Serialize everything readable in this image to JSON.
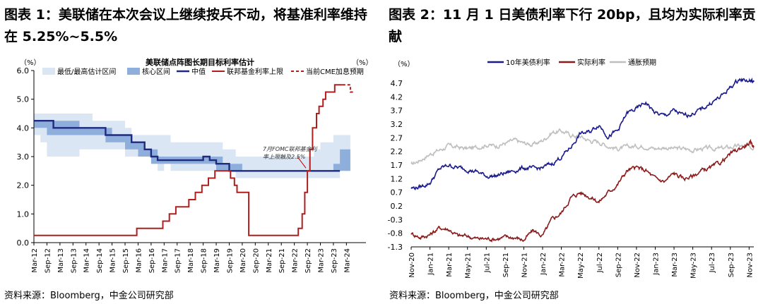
{
  "chart_data": [
    {
      "type": "line",
      "figure_title": "图表 1：美联储在本次会议上继续按兵不动，将基准利率维持在 5.25%~5.5%",
      "title": "美联储点阵图长期目标利率估计",
      "ylabel_left": "（%）",
      "ylabel_right": "（%）",
      "ylim": [
        0,
        6
      ],
      "yticks": [
        "0.0",
        "1.0",
        "2.0",
        "3.0",
        "4.0",
        "5.0",
        "6.0"
      ],
      "xticks": [
        "Mar-12",
        "Sep-12",
        "Mar-13",
        "Sep-13",
        "Mar-14",
        "Sep-14",
        "Mar-15",
        "Sep-15",
        "Mar-16",
        "Sep-16",
        "Mar-17",
        "Sep-17",
        "Mar-18",
        "Sep-18",
        "Mar-19",
        "Sep-19",
        "Mar-20",
        "Sep-20",
        "Mar-21",
        "Sep-21",
        "Mar-22",
        "Sep-22",
        "Mar-23",
        "Sep-23",
        "Mar-24"
      ],
      "legend": [
        "最低/最高估计区间",
        "核心区间",
        "中值",
        "联邦基金利率上限",
        "当前CME加息预期"
      ],
      "annotation": "7月FOMC联邦基金利率上限触及2.5%",
      "colors": {
        "range": "#dbe6f4",
        "core": "#8eaedb",
        "median": "#1f2a80",
        "fed": "#b01e1e",
        "cme": "#b01e1e"
      },
      "range_band": {
        "t": [
          2012.0,
          2012.25,
          2012.5,
          2012.75,
          2013.0,
          2013.25,
          2013.5,
          2013.75,
          2014.0,
          2014.25,
          2014.5,
          2014.75,
          2015.0,
          2015.25,
          2015.5,
          2015.75,
          2016.0,
          2016.25,
          2016.5,
          2016.75,
          2017.0,
          2017.25,
          2017.5,
          2017.75,
          2018.0,
          2018.25,
          2018.5,
          2018.75,
          2019.0,
          2019.25,
          2019.5,
          2019.75,
          2020.0,
          2020.25,
          2020.5,
          2020.75,
          2021.0,
          2021.25,
          2021.5,
          2021.75,
          2022.0,
          2022.25,
          2022.5,
          2022.75,
          2023.0,
          2023.25,
          2023.5,
          2023.75
        ],
        "low": [
          3.75,
          3.5,
          3.0,
          3.0,
          3.0,
          3.0,
          3.0,
          3.25,
          3.25,
          3.25,
          3.25,
          3.25,
          3.25,
          3.25,
          3.0,
          3.0,
          3.0,
          3.0,
          2.75,
          2.5,
          2.75,
          2.5,
          2.5,
          2.5,
          2.5,
          2.5,
          2.5,
          2.5,
          2.5,
          2.5,
          2.5,
          2.25,
          2.25,
          2.25,
          2.25,
          2.25,
          2.25,
          2.25,
          2.25,
          2.25,
          2.25,
          2.25,
          2.25,
          2.25,
          2.25,
          2.25,
          2.25,
          2.5
        ],
        "high": [
          4.5,
          4.5,
          4.5,
          4.5,
          4.5,
          4.5,
          4.5,
          4.5,
          4.5,
          4.25,
          4.25,
          4.25,
          4.25,
          4.25,
          4.0,
          3.75,
          3.75,
          3.75,
          3.75,
          3.75,
          3.75,
          3.5,
          3.5,
          3.5,
          3.5,
          3.5,
          3.5,
          3.5,
          3.5,
          3.25,
          3.25,
          3.0,
          3.0,
          3.0,
          3.0,
          3.0,
          3.0,
          3.0,
          3.0,
          3.0,
          3.0,
          3.0,
          3.0,
          3.25,
          3.5,
          3.5,
          3.75,
          3.75
        ]
      },
      "core_band": {
        "t": [
          2012.0,
          2012.25,
          2012.5,
          2012.75,
          2013.0,
          2013.25,
          2013.5,
          2013.75,
          2014.0,
          2014.25,
          2014.5,
          2014.75,
          2015.0,
          2015.25,
          2015.5,
          2015.75,
          2016.0,
          2016.25,
          2016.5,
          2016.75,
          2017.0,
          2017.25,
          2017.5,
          2017.75,
          2018.0,
          2018.25,
          2018.5,
          2018.75,
          2019.0,
          2019.25,
          2019.5,
          2019.75,
          2020.0,
          2020.25,
          2020.5,
          2020.75,
          2021.0,
          2021.25,
          2021.5,
          2021.75,
          2022.0,
          2022.25,
          2022.5,
          2022.75,
          2023.0,
          2023.25,
          2023.5,
          2023.75
        ],
        "low": [
          4.0,
          4.0,
          3.75,
          3.75,
          3.75,
          3.75,
          3.75,
          3.75,
          3.75,
          3.75,
          3.75,
          3.5,
          3.5,
          3.5,
          3.25,
          3.25,
          3.0,
          3.0,
          2.75,
          2.75,
          2.75,
          2.75,
          2.75,
          2.75,
          2.75,
          2.75,
          2.75,
          2.75,
          2.5,
          2.5,
          2.5,
          2.5,
          2.5,
          2.5,
          2.5,
          2.5,
          2.5,
          2.5,
          2.5,
          2.5,
          2.5,
          2.5,
          2.5,
          2.5,
          2.5,
          2.5,
          2.5,
          2.5
        ],
        "high": [
          4.25,
          4.25,
          4.25,
          4.25,
          4.25,
          4.25,
          4.25,
          4.0,
          4.0,
          4.0,
          4.0,
          4.0,
          3.75,
          3.75,
          3.75,
          3.5,
          3.5,
          3.25,
          3.25,
          3.0,
          3.0,
          3.0,
          3.0,
          3.0,
          3.0,
          3.0,
          3.0,
          3.0,
          3.0,
          2.75,
          2.75,
          2.75,
          2.5,
          2.5,
          2.5,
          2.5,
          2.5,
          2.5,
          2.5,
          2.5,
          2.5,
          2.5,
          2.5,
          2.5,
          2.5,
          2.5,
          2.75,
          3.25
        ]
      },
      "median": {
        "t": [
          2012.0,
          2012.75,
          2013.5,
          2014.0,
          2014.75,
          2015.25,
          2015.75,
          2016.25,
          2016.5,
          2016.75,
          2017.25,
          2018.0,
          2018.5,
          2018.75,
          2019.0,
          2019.5,
          2019.75,
          2022.25,
          2022.5,
          2023.75
        ],
        "v": [
          4.25,
          4.0,
          4.0,
          4.0,
          3.75,
          3.75,
          3.5,
          3.25,
          3.0,
          2.875,
          2.875,
          2.875,
          3.0,
          2.875,
          2.75,
          2.5,
          2.5,
          2.5,
          2.5,
          2.5
        ]
      },
      "fed_upper": {
        "t": [
          2012.0,
          2015.95,
          2016.95,
          2017.2,
          2017.45,
          2017.95,
          2018.2,
          2018.45,
          2018.7,
          2018.95,
          2019.55,
          2019.7,
          2019.8,
          2020.2,
          2020.25,
          2022.15,
          2022.3,
          2022.4,
          2022.5,
          2022.6,
          2022.7,
          2022.85,
          2022.95,
          2023.1,
          2023.2,
          2023.35,
          2023.55,
          2023.85
        ],
        "v": [
          0.25,
          0.5,
          0.75,
          1.0,
          1.25,
          1.5,
          1.75,
          2.0,
          2.25,
          2.5,
          2.25,
          2.0,
          1.75,
          1.75,
          0.25,
          0.5,
          1.0,
          1.75,
          2.5,
          3.25,
          4.0,
          4.5,
          4.75,
          5.0,
          5.25,
          5.25,
          5.5,
          5.5
        ]
      },
      "cme": {
        "t": [
          2023.85,
          2024.0,
          2024.15,
          2024.25
        ],
        "v": [
          5.5,
          5.5,
          5.25,
          5.25
        ]
      },
      "annotation_point": {
        "t": 2022.5,
        "v": 2.5
      }
    },
    {
      "type": "line",
      "figure_title": "图表 2：11 月 1 日美债利率下行 20bp，且均为实际利率贡献",
      "ylabel": "（%）",
      "ylim": [
        -1.3,
        4.7
      ],
      "yticks": [
        "-1.3",
        "-0.8",
        "-0.3",
        "0.2",
        "0.7",
        "1.2",
        "1.7",
        "2.2",
        "2.7",
        "3.2",
        "3.7",
        "4.2",
        "4.7"
      ],
      "xticks": [
        "Nov-20",
        "Jan-21",
        "Mar-21",
        "May-21",
        "Jul-21",
        "Sep-21",
        "Nov-21",
        "Jan-22",
        "Mar-22",
        "May-22",
        "Jul-22",
        "Sep-22",
        "Nov-22",
        "Jan-23",
        "Mar-23",
        "May-23",
        "Jul-23",
        "Sep-23",
        "Nov-23"
      ],
      "legend": [
        "10年美债利率",
        "实际利率",
        "通胀预期"
      ],
      "colors": {
        "nominal": "#1a1a8c",
        "real": "#8b1a1a",
        "breakeven": "#bfbfbf"
      },
      "series": [
        {
          "name": "10年美债利率",
          "key": "nominal",
          "t": [
            0,
            1,
            2,
            3,
            4,
            5,
            6,
            7,
            8,
            9,
            10,
            11,
            12,
            13,
            14,
            15,
            16,
            17,
            18,
            19,
            20,
            21,
            22,
            23,
            24,
            25,
            26,
            27,
            28,
            29,
            30,
            31,
            32,
            33,
            34,
            35,
            36,
            36.5
          ],
          "v": [
            0.85,
            0.9,
            1.05,
            1.55,
            1.7,
            1.6,
            1.55,
            1.45,
            1.3,
            1.3,
            1.4,
            1.5,
            1.6,
            1.55,
            1.6,
            1.75,
            2.0,
            2.35,
            2.85,
            2.9,
            3.2,
            2.75,
            2.95,
            3.6,
            3.75,
            4.0,
            3.6,
            3.5,
            3.7,
            3.5,
            3.6,
            3.75,
            4.0,
            4.2,
            4.55,
            4.85,
            4.8,
            4.75
          ]
        },
        {
          "name": "实际利率",
          "key": "real",
          "t": [
            0,
            1,
            2,
            3,
            4,
            5,
            6,
            7,
            8,
            9,
            10,
            11,
            12,
            13,
            14,
            15,
            16,
            17,
            18,
            19,
            20,
            21,
            22,
            23,
            24,
            25,
            26,
            27,
            28,
            29,
            30,
            31,
            32,
            33,
            34,
            35,
            36,
            36.5
          ],
          "v": [
            -0.8,
            -0.95,
            -0.85,
            -0.6,
            -0.65,
            -0.9,
            -0.9,
            -1.0,
            -1.0,
            -1.0,
            -0.95,
            -0.95,
            -1.05,
            -0.7,
            -0.9,
            -0.3,
            -0.05,
            0.5,
            0.7,
            0.55,
            0.35,
            0.7,
            1.0,
            1.5,
            1.6,
            1.5,
            1.2,
            1.1,
            1.4,
            1.2,
            1.3,
            1.5,
            1.6,
            1.8,
            2.1,
            2.3,
            2.5,
            2.4
          ]
        },
        {
          "name": "通胀预期",
          "key": "breakeven",
          "t": [
            0,
            1,
            2,
            3,
            4,
            5,
            6,
            7,
            8,
            9,
            10,
            11,
            12,
            13,
            14,
            15,
            16,
            17,
            18,
            19,
            20,
            21,
            22,
            23,
            24,
            25,
            26,
            27,
            28,
            29,
            30,
            31,
            32,
            33,
            34,
            35,
            36,
            36.5
          ],
          "v": [
            1.7,
            1.9,
            2.1,
            2.25,
            2.4,
            2.35,
            2.3,
            2.35,
            2.45,
            2.4,
            2.5,
            2.6,
            2.5,
            2.45,
            2.6,
            2.9,
            2.95,
            2.8,
            2.75,
            2.6,
            2.55,
            2.4,
            2.3,
            2.35,
            2.4,
            2.4,
            2.3,
            2.35,
            2.3,
            2.3,
            2.25,
            2.3,
            2.3,
            2.3,
            2.35,
            2.4,
            2.35,
            2.4
          ]
        }
      ]
    }
  ],
  "source_left": "资料来源：Bloomberg，中金公司研究部",
  "source_right": "资料来源：Bloomberg，中金公司研究部"
}
